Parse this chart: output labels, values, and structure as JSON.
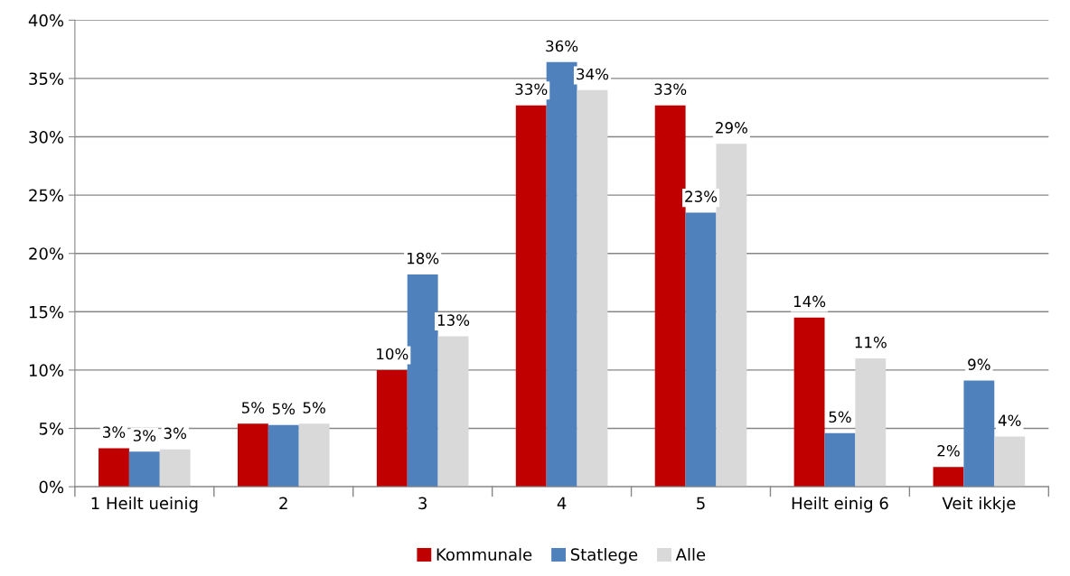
{
  "chart_data": {
    "type": "bar",
    "categories": [
      "1 Heilt ueinig",
      "2",
      "3",
      "4",
      "5",
      "Heilt einig 6",
      "Veit ikkje"
    ],
    "series": [
      {
        "name": "Kommunale",
        "color": "#c00000",
        "values": [
          3.3,
          5.4,
          10.0,
          32.7,
          32.7,
          14.5,
          1.7
        ],
        "value_labels": [
          "3%",
          "5%",
          "10%",
          "33%",
          "33%",
          "14%",
          "2%"
        ]
      },
      {
        "name": "Statlege",
        "color": "#4f81bd",
        "values": [
          3.0,
          5.3,
          18.2,
          36.4,
          23.5,
          4.6,
          9.1
        ],
        "value_labels": [
          "3%",
          "5%",
          "18%",
          "36%",
          "23%",
          "5%",
          "9%"
        ]
      },
      {
        "name": "Alle",
        "color": "#d9d9d9",
        "values": [
          3.2,
          5.4,
          12.9,
          34.0,
          29.4,
          11.0,
          4.3
        ],
        "value_labels": [
          "3%",
          "5%",
          "13%",
          "34%",
          "29%",
          "11%",
          "4%"
        ]
      }
    ],
    "ylim": [
      0,
      40
    ],
    "yticks": [
      {
        "value": 0,
        "label": "0%"
      },
      {
        "value": 5,
        "label": "5%"
      },
      {
        "value": 10,
        "label": "10%"
      },
      {
        "value": 15,
        "label": "15%"
      },
      {
        "value": 20,
        "label": "20%"
      },
      {
        "value": 25,
        "label": "25%"
      },
      {
        "value": 30,
        "label": "30%"
      },
      {
        "value": 35,
        "label": "35%"
      },
      {
        "value": 40,
        "label": "40%"
      }
    ],
    "grid": "y",
    "legend": "bottom"
  }
}
